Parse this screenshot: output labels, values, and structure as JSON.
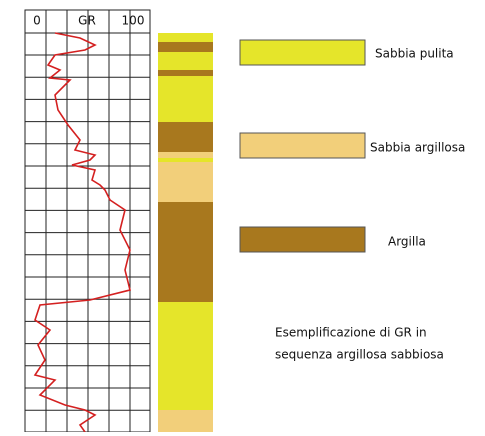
{
  "header": {
    "labels": [
      "0",
      "GR",
      "100"
    ]
  },
  "legend": [
    "Sabbia pulita",
    "Sabbia argillosa",
    "Argilla"
  ],
  "caption": [
    "Esemplificazione di GR in",
    "sequenza argillosa sabbiosa"
  ]
}
